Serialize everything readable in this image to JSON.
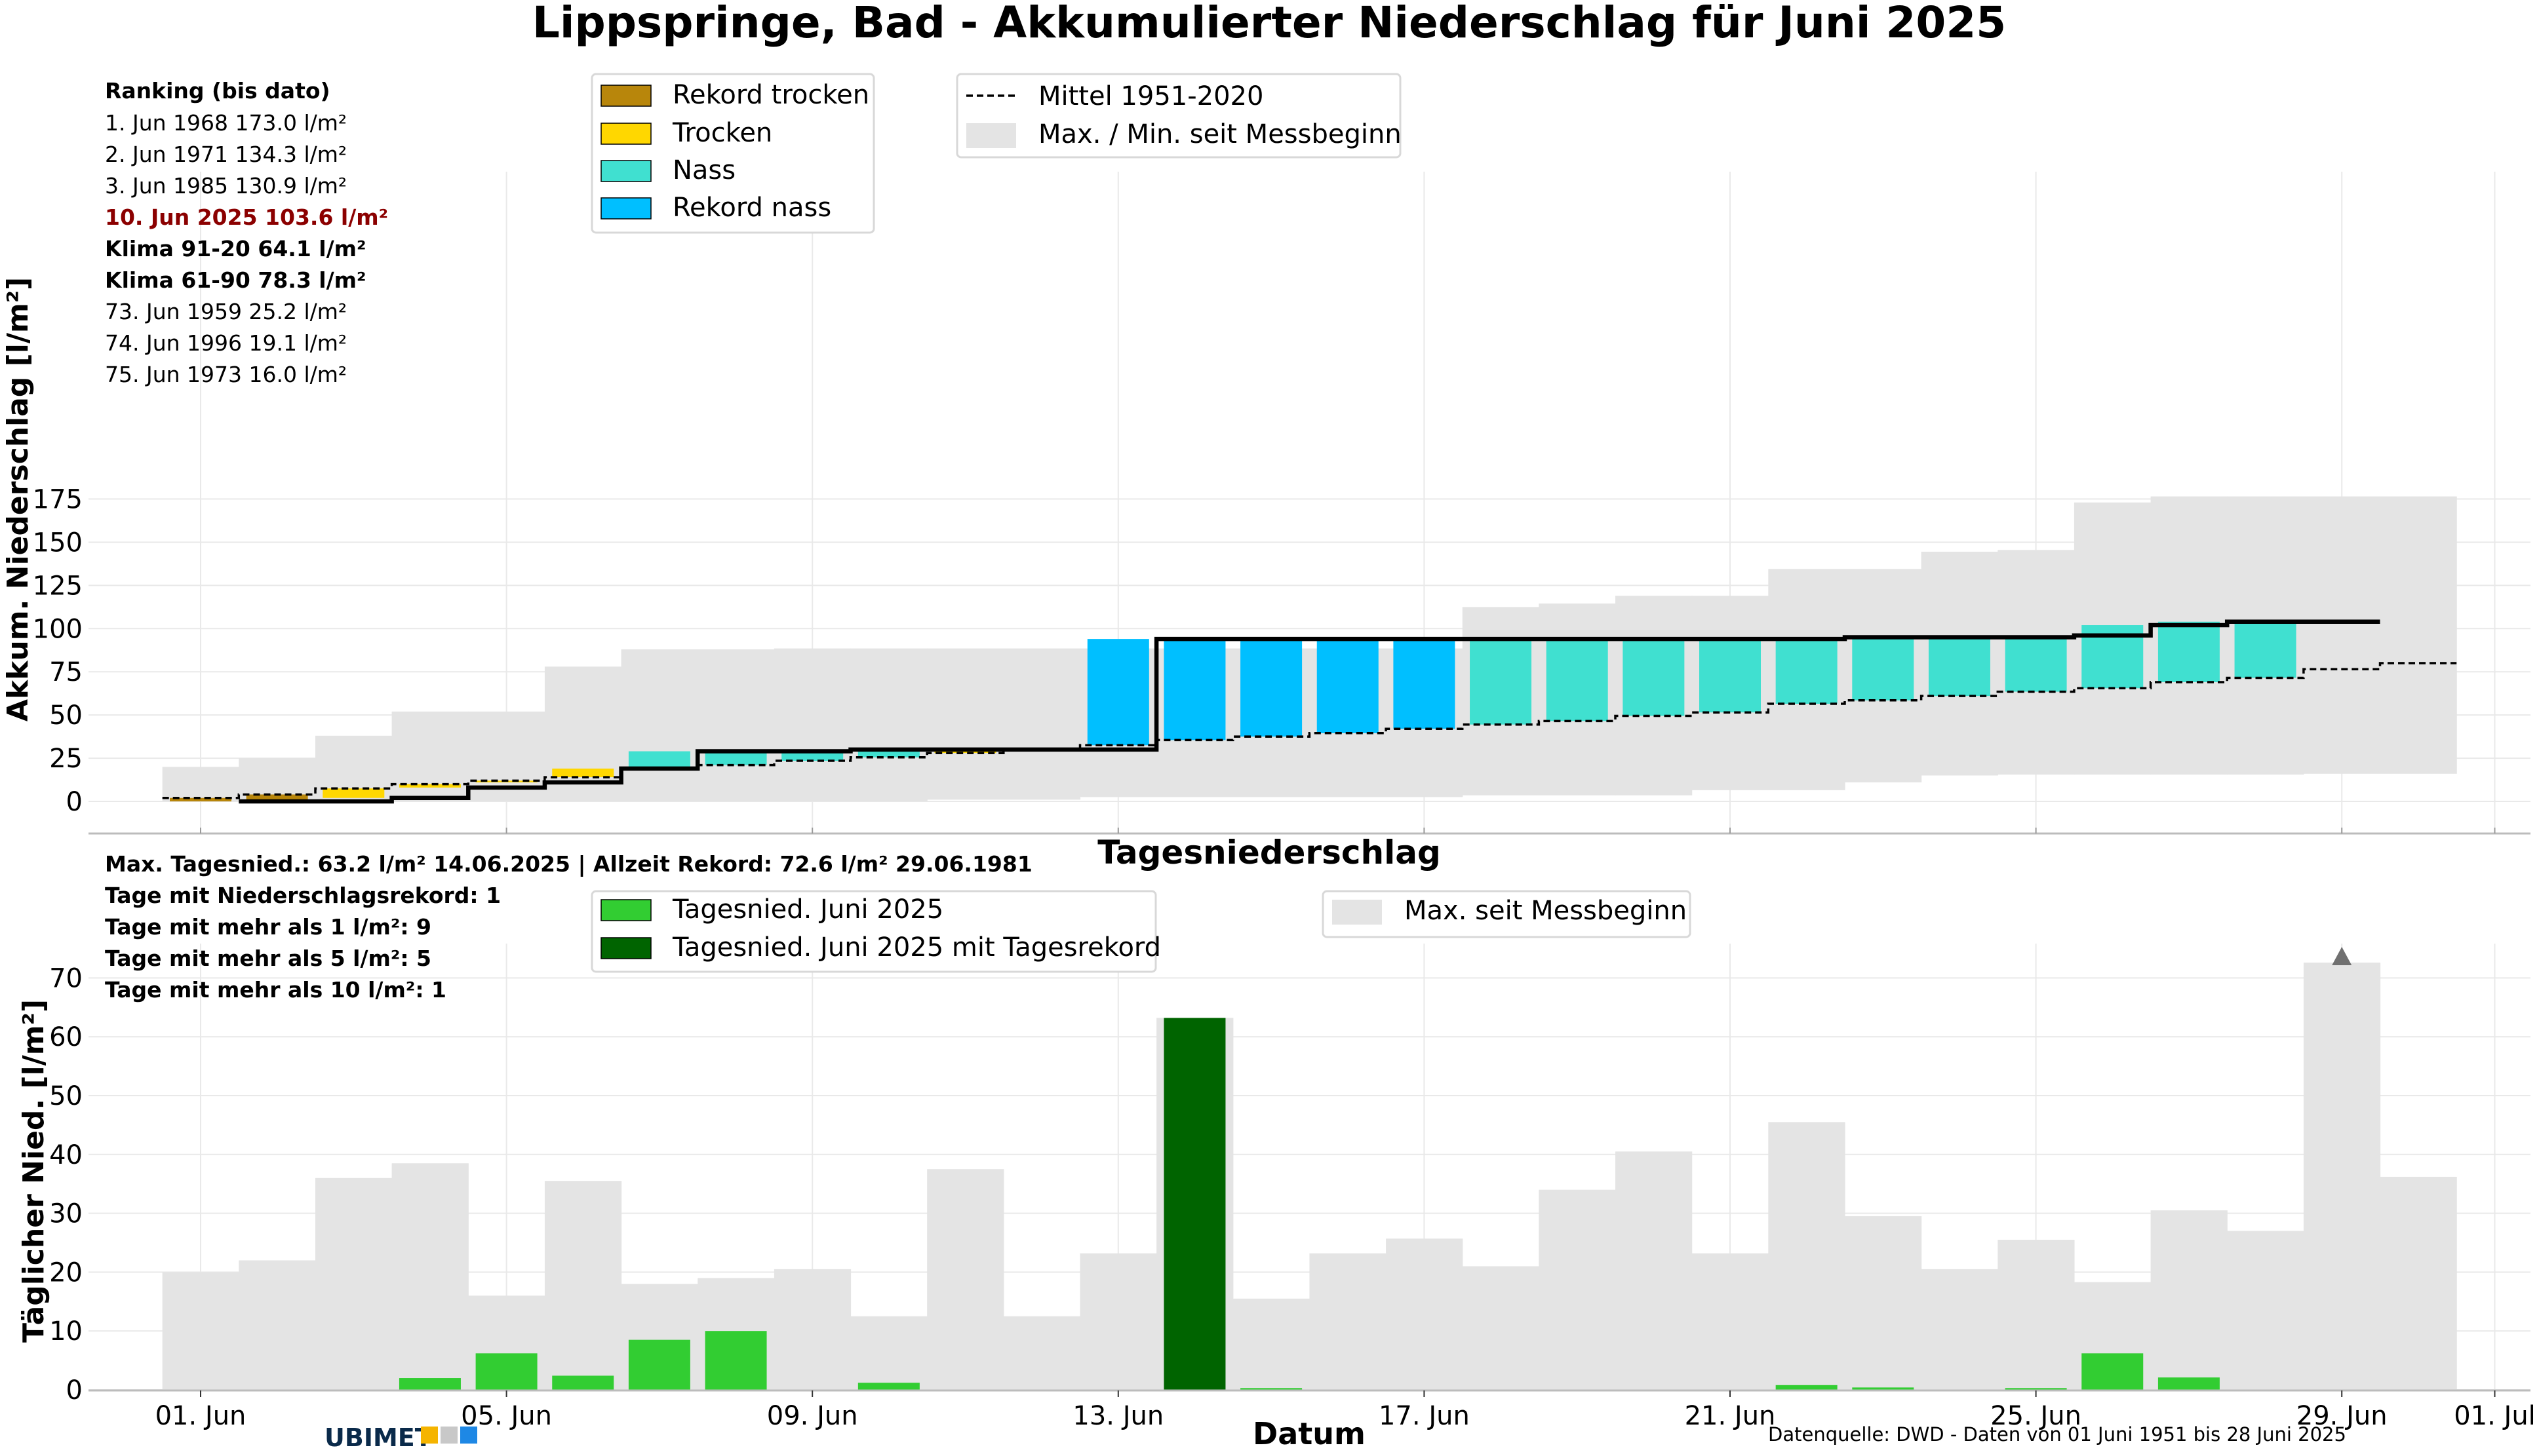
{
  "chart_data": [
    {
      "type": "bar",
      "title": "Lippspringe, Bad - Akkumulierter Niederschlag für Juni 2025",
      "ylabel": "Akkum. Niederschlag [l/m²]",
      "ylim": [
        -8,
        182
      ],
      "yticks": [
        0,
        25,
        50,
        75,
        100,
        125,
        150,
        175
      ],
      "x_dates": [
        "2025-06-01",
        "2025-06-02",
        "2025-06-03",
        "2025-06-04",
        "2025-06-05",
        "2025-06-06",
        "2025-06-07",
        "2025-06-08",
        "2025-06-09",
        "2025-06-10",
        "2025-06-11",
        "2025-06-12",
        "2025-06-13",
        "2025-06-14",
        "2025-06-15",
        "2025-06-16",
        "2025-06-17",
        "2025-06-18",
        "2025-06-19",
        "2025-06-20",
        "2025-06-21",
        "2025-06-22",
        "2025-06-23",
        "2025-06-24",
        "2025-06-25",
        "2025-06-26",
        "2025-06-27",
        "2025-06-28",
        "2025-06-29",
        "2025-06-30"
      ],
      "grid": true,
      "series": [
        {
          "name": "Akkumuliert Juni 2025",
          "color": "#000000",
          "values": [
            0,
            0,
            2,
            8,
            11,
            19,
            29,
            29,
            30,
            30,
            30,
            30,
            94,
            94,
            94,
            94,
            94,
            94,
            94,
            94,
            94,
            95,
            95,
            95,
            96,
            102,
            104,
            104
          ]
        },
        {
          "name": "Mittel 1951-2020",
          "color": "#000000",
          "values": [
            2,
            4,
            7.5,
            10,
            12,
            14,
            19,
            21,
            23.5,
            25.5,
            28,
            30,
            32.5,
            35.5,
            37.5,
            39.5,
            42,
            44.5,
            46.5,
            49.5,
            51.5,
            56.5,
            58.5,
            61,
            63.5,
            65.5,
            69,
            71.5,
            76.5,
            80
          ]
        },
        {
          "name": "Max. / Min. seit Messbeginn",
          "color": "#e4e4e4",
          "values_max": [
            20,
            25,
            38,
            52,
            52,
            78,
            88,
            88,
            88.5,
            88.5,
            88.5,
            88.5,
            88.5,
            88.5,
            88.5,
            88.5,
            88.5,
            112.5,
            114.5,
            119,
            119,
            134.5,
            134.5,
            144.5,
            145.5,
            173,
            176.5,
            176.5,
            176.5,
            176.5
          ],
          "values_min": [
            0,
            0,
            0,
            0,
            0,
            0,
            0,
            0,
            0,
            0,
            1,
            1,
            2.5,
            2.5,
            2.5,
            2.5,
            2.5,
            3.5,
            3.5,
            3.5,
            6.5,
            6.5,
            11,
            15,
            15.5,
            15.5,
            15.5,
            15.5,
            16,
            16
          ]
        }
      ],
      "categories_bars": [
        "Rekord trocken",
        "Trocken",
        "Nass",
        "Rekord nass"
      ],
      "category_colors": {
        "Rekord trocken": "#b8860b",
        "Trocken": "#ffd700",
        "Nass": "#40e0d0",
        "Rekord nass": "#00bfff"
      },
      "bar_category": [
        "Rekord trocken",
        "Rekord trocken",
        "Trocken",
        "Trocken",
        "Trocken",
        "Trocken",
        "Nass",
        "Nass",
        "Nass",
        "Nass",
        "Trocken",
        "Trocken",
        "Rekord nass",
        "Rekord nass",
        "Rekord nass",
        "Rekord nass",
        "Rekord nass",
        "Nass",
        "Nass",
        "Nass",
        "Nass",
        "Nass",
        "Nass",
        "Nass",
        "Nass",
        "Nass",
        "Nass",
        "Nass"
      ],
      "legend": [
        "Rekord trocken",
        "Trocken",
        "Nass",
        "Rekord nass",
        "Mittel 1951-2020",
        "Max. / Min. seit Messbeginn"
      ],
      "ranking_title": "Ranking (bis dato)",
      "ranking": [
        {
          "text": "1.  Jun 1968  173.0 l/m²",
          "highlight": false,
          "bold": false
        },
        {
          "text": "2.  Jun 1971  134.3 l/m²",
          "highlight": false,
          "bold": false
        },
        {
          "text": "3.  Jun 1985  130.9 l/m²",
          "highlight": false,
          "bold": false
        },
        {
          "text": "10.  Jun 2025  103.6 l/m²",
          "highlight": true,
          "bold": true
        },
        {
          "text": "Klima 91-20 64.1 l/m²",
          "highlight": false,
          "bold": true
        },
        {
          "text": "Klima 61-90 78.3 l/m²",
          "highlight": false,
          "bold": true
        },
        {
          "text": "73.  Jun 1959  25.2 l/m²",
          "highlight": false,
          "bold": false
        },
        {
          "text": "74.  Jun 1996  19.1 l/m²",
          "highlight": false,
          "bold": false
        },
        {
          "text": "75.  Jun 1973  16.0 l/m²",
          "highlight": false,
          "bold": false
        }
      ],
      "highlight_color": "#8b0000"
    },
    {
      "type": "bar",
      "title": "Tagesniederschlag",
      "xlabel": "Datum",
      "ylabel": "Täglicher Nied. [l/m²]",
      "ylim": [
        0,
        74
      ],
      "yticks": [
        0,
        10,
        20,
        30,
        40,
        50,
        60,
        70
      ],
      "x_ticks": [
        "01. Jun",
        "05. Jun",
        "09. Jun",
        "13. Jun",
        "17. Jun",
        "21. Jun",
        "25. Jun",
        "29. Jun",
        "01. Jul"
      ],
      "grid": true,
      "series": [
        {
          "name": "Tagesnied. Juni 2025",
          "color": "#32cd32",
          "values": [
            0,
            0,
            0,
            2,
            6.2,
            2.4,
            8.5,
            10,
            0,
            1.2,
            0,
            0,
            0,
            63.2,
            0.3,
            0,
            0,
            0,
            0,
            0,
            0,
            0.8,
            0.4,
            0,
            0.3,
            6.2,
            2.1,
            0
          ]
        },
        {
          "name": "Max. seit Messbeginn",
          "color": "#e4e4e4",
          "values": [
            20,
            22,
            36,
            38.5,
            16,
            35.5,
            18,
            19,
            20.5,
            12.5,
            37.5,
            12.5,
            23.2,
            63.2,
            15.5,
            23.2,
            25.7,
            21,
            34,
            40.5,
            23.2,
            45.5,
            29.5,
            20.5,
            25.5,
            18.3,
            30.5,
            27,
            72.6,
            36.2
          ]
        }
      ],
      "record_days": [
        14
      ],
      "record_color": "#006400",
      "alltime_marker": {
        "day": 29,
        "value": 72.6,
        "color": "#707070"
      },
      "legend": [
        "Tagesnied. Juni 2025",
        "Tagesnied. Juni 2025 mit Tagesrekord",
        "Max. seit Messbeginn"
      ],
      "stats": [
        "Max. Tagesnied.: 63.2 l/m² 14.06.2025 | Allzeit Rekord: 72.6 l/m² 29.06.1981",
        "Tage mit Niederschlagsrekord: 1",
        "Tage mit mehr als 1 l/m²: 9",
        "Tage mit mehr als 5 l/m²: 5",
        "Tage mit mehr als 10 l/m²: 1"
      ]
    }
  ],
  "footer": {
    "logo": "UBIMET",
    "logo_colors": [
      "#0a2a4a",
      "#f5b400",
      "#c8c8c8",
      "#1e88e5"
    ],
    "source": "Datenquelle: DWD - Daten von 01 Juni 1951 bis 28 Juni 2025"
  }
}
